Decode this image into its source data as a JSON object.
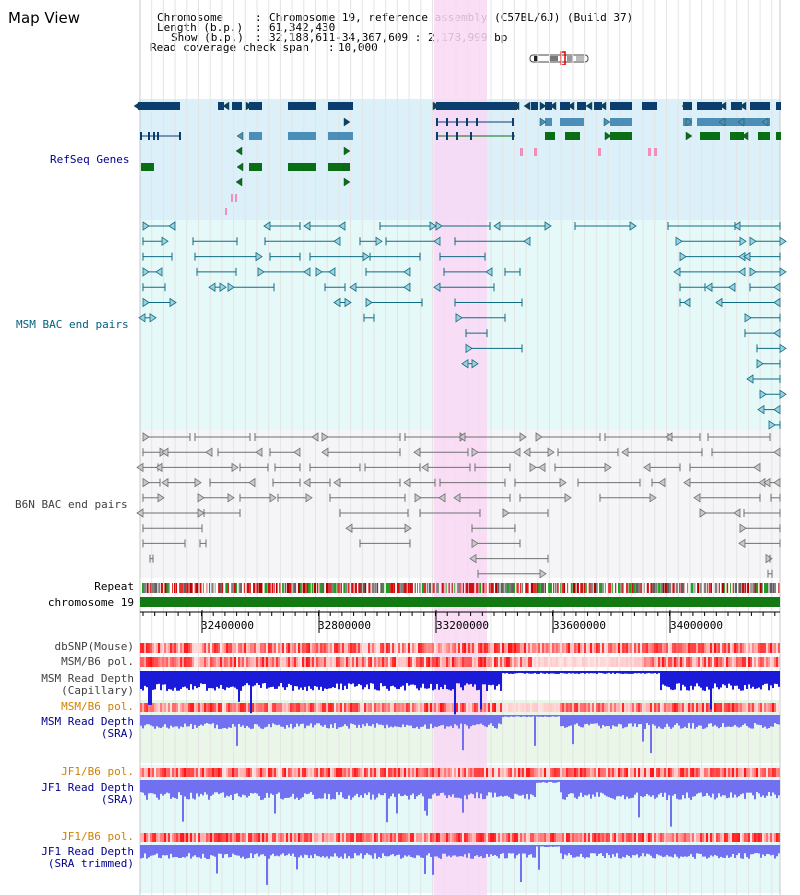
{
  "app": {
    "title": "Map View"
  },
  "info": {
    "chromosome_label": "Chromosome",
    "chromosome_value": "Chromosome 19, reference assembly (C57BL/6J) (Build 37)",
    "length_label": "Length (b.p.)",
    "length_value": "61,342,430",
    "show_label": "Show (b.p.)",
    "show_value": "32,188,611-34,367,609 : 2,178,999 bp",
    "coverage_label": "Read coverage check span",
    "coverage_value": "10,000"
  },
  "tracks": {
    "refseq": "RefSeq Genes",
    "msm_bac": "MSM BAC end pairs",
    "b6n_bac": "B6N BAC end pairs",
    "repeat": "Repeat",
    "chromosome": "chromosome 19",
    "dbsnp": "dbSNP(Mouse)",
    "msm_b6_pol_1": "MSM/B6 pol.",
    "msm_read_depth_cap_1": "MSM Read Depth",
    "msm_read_depth_cap_2": "(Capillary)",
    "msm_b6_pol_2": "MSM/B6 pol.",
    "msm_read_depth_sra_1": "MSM Read Depth",
    "msm_read_depth_sra_2": "(SRA)",
    "jf1_b6_pol_1": "JF1/B6 pol.",
    "jf1_read_depth_sra_1": "JF1 Read Depth",
    "jf1_read_depth_sra_2": "(SRA)",
    "jf1_b6_pol_2": "JF1/B6 pol.",
    "jf1_read_depth_trim_1": "JF1 Read Depth",
    "jf1_read_depth_trim_2": "(SRA trimmed)"
  },
  "axis": {
    "ticks": [
      "32400000",
      "32800000",
      "33200000",
      "33600000",
      "34000000"
    ]
  },
  "colors": {
    "refseq_dark": "#0b3d6e",
    "refseq_mid": "#4b8fb8",
    "refseq_green": "#0a6e14",
    "refseq_bg": "#dcf0fa",
    "msm_bg": "#e6f9f9",
    "msm_line": "#0e6c84",
    "b6n_bg": "#f5f5f7",
    "b6n_line": "#707070",
    "highlight": "#f9d8f4",
    "chromosome": "#137a13",
    "depth_dark": "#1a1ad8",
    "depth_light": "#7070f0",
    "label_blue": "#00008b",
    "label_orange": "#d08000",
    "label_teal": "#006080"
  }
}
